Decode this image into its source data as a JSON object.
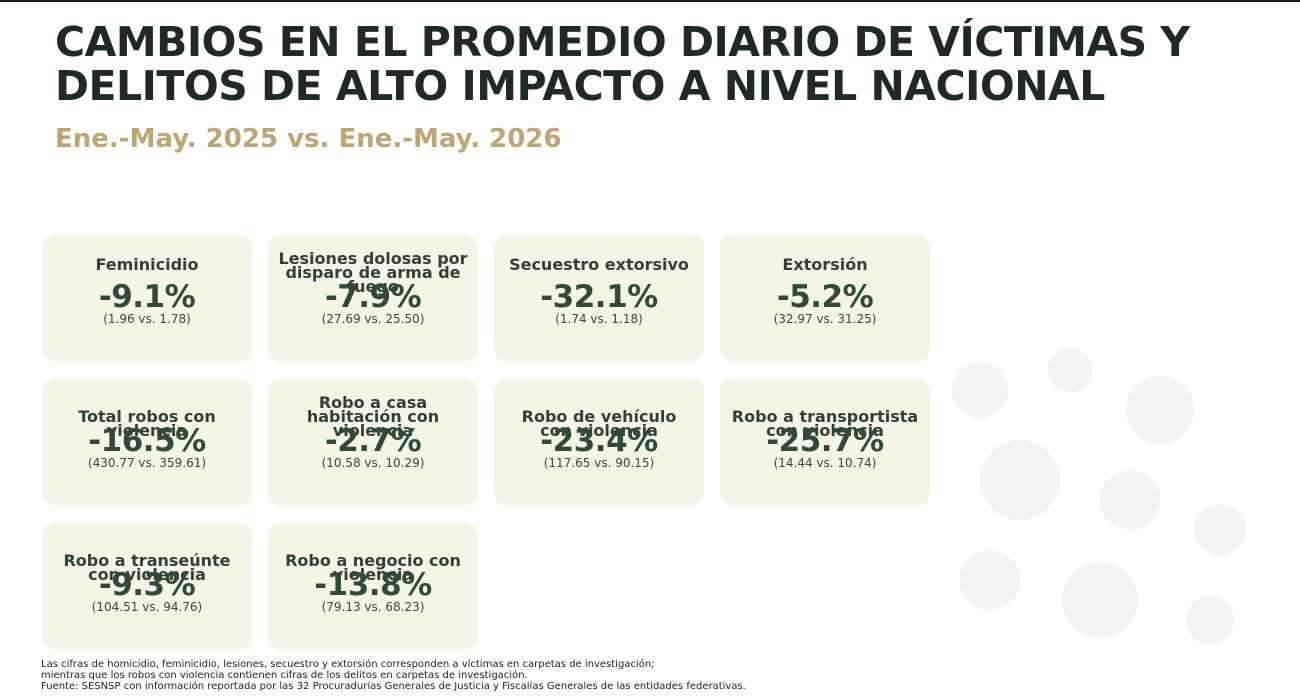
{
  "title": {
    "line1": "CAMBIOS EN EL PROMEDIO DIARIO DE VÍCTIMAS Y",
    "line2": "DELITOS DE ALTO IMPACTO A NIVEL NACIONAL"
  },
  "subtitle": "Ene.-May. 2025 vs. Ene.-May. 2026",
  "cards": [
    {
      "label": "Feminicidio",
      "value": "-9.1%",
      "compare": "(1.96 vs. 1.78)"
    },
    {
      "label": "Lesiones dolosas por disparo de arma de fuego",
      "value": "-7.9%",
      "compare": "(27.69 vs. 25.50)"
    },
    {
      "label": "Secuestro extorsivo",
      "value": "-32.1%",
      "compare": "(1.74 vs. 1.18)"
    },
    {
      "label": "Extorsión",
      "value": "-5.2%",
      "compare": "(32.97 vs. 31.25)"
    },
    {
      "label": "Total robos con violencia",
      "value": "-16.5%",
      "compare": "(430.77 vs. 359.61)"
    },
    {
      "label": "Robo a casa habitación con violencia",
      "value": "-2.7%",
      "compare": "(10.58 vs. 10.29)"
    },
    {
      "label": "Robo de vehículo con violencia",
      "value": "-23.4%",
      "compare": "(117.65 vs. 90.15)"
    },
    {
      "label": "Robo a transportista con violencia",
      "value": "-25.7%",
      "compare": "(14.44 vs. 10.74)"
    },
    {
      "label": "Robo a transeúnte con violencia",
      "value": "-9.3%",
      "compare": "(104.51 vs. 94.76)"
    },
    {
      "label": "Robo a negocio con violencia",
      "value": "-13.8%",
      "compare": "(79.13 vs. 68.23)"
    }
  ],
  "footnote": {
    "line1": "Las cifras de homicidio, feminicidio, lesiones, secuestro y extorsión corresponden a víctimas en carpetas de investigación;",
    "line2": "mientras que los robos con violencia contienen cifras de los delitos en carpetas de investigación.",
    "line3": "Fuente: SESNSP con información reportada por las 32 Procuradurías Generales de Justicia y Fiscalías Generales de las entidades federativas."
  },
  "colors": {
    "title": "#1d2b22",
    "subtitle": "#bfa570",
    "card_background": "#f3f6e6",
    "value": "#2f4a38"
  }
}
